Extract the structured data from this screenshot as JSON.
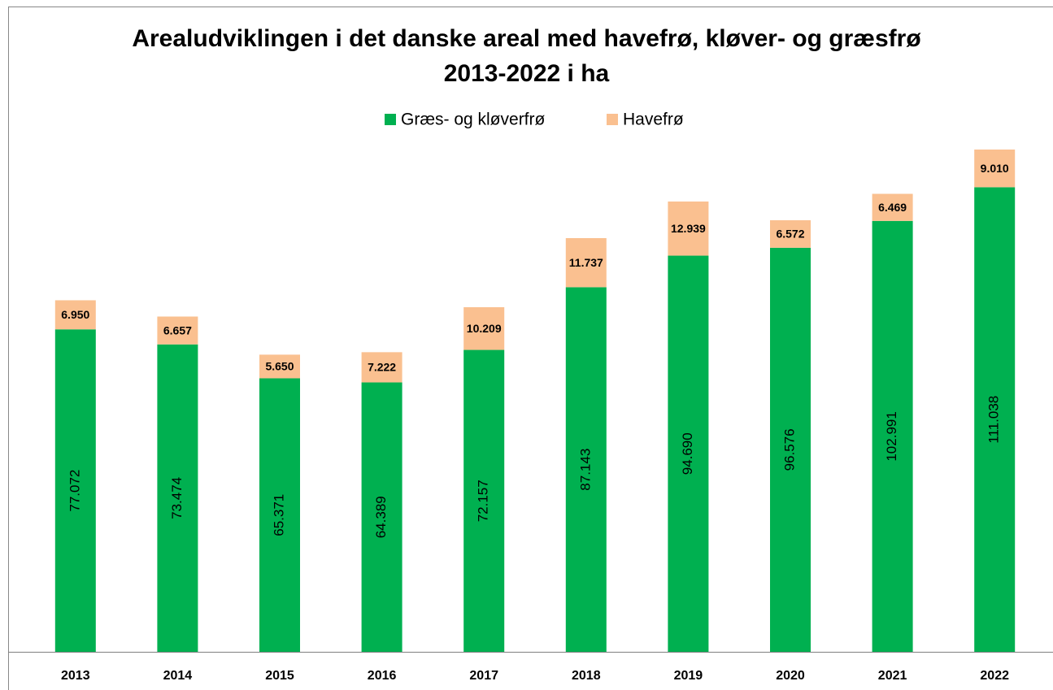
{
  "chart_data": {
    "type": "stacked_bar",
    "title": "Arealudviklingen i det danske areal med havefrø, kløver- og græsfrø\n2013-2022 i ha",
    "categories": [
      "2013",
      "2014",
      "2015",
      "2016",
      "2017",
      "2018",
      "2019",
      "2020",
      "2021",
      "2022"
    ],
    "series": [
      {
        "name": "Græs- og kløverfrø",
        "color": "#00b050",
        "values": [
          77072,
          73474,
          65371,
          64389,
          72157,
          87143,
          94690,
          96576,
          102991,
          111038
        ],
        "value_labels": [
          "77.072",
          "73.474",
          "65.371",
          "64.389",
          "72.157",
          "87.143",
          "94.690",
          "96.576",
          "102.991",
          "111.038"
        ]
      },
      {
        "name": "Havefrø",
        "color": "#fac090",
        "values": [
          6950,
          6657,
          5650,
          7222,
          10209,
          11737,
          12939,
          6572,
          6469,
          9010
        ],
        "value_labels": [
          "6.950",
          "6.657",
          "5.650",
          "7.222",
          "10.209",
          "11.737",
          "12.939",
          "6.572",
          "6.469",
          "9.010"
        ]
      }
    ]
  }
}
